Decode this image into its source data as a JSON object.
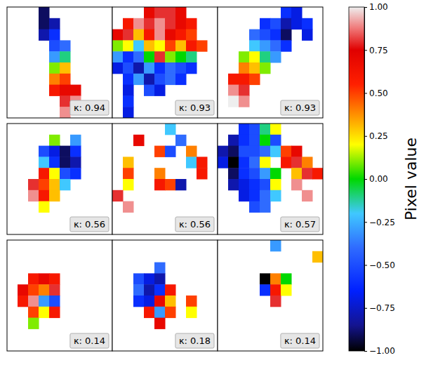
{
  "chart_data": {
    "type": "heatmap",
    "tick_labels": false,
    "panels": [
      {
        "label": "κ: 0.94",
        "cells": [
          [
            null,
            null,
            null,
            -0.9,
            null,
            null,
            null,
            null,
            null,
            null
          ],
          [
            null,
            null,
            null,
            -0.9,
            -0.8,
            null,
            null,
            null,
            null,
            null
          ],
          [
            null,
            null,
            null,
            -0.8,
            -0.6,
            null,
            null,
            null,
            null,
            null
          ],
          [
            null,
            null,
            null,
            null,
            -0.5,
            -0.4,
            null,
            null,
            null,
            null
          ],
          [
            null,
            null,
            null,
            null,
            -0.3,
            -0.1,
            null,
            null,
            null,
            null
          ],
          [
            null,
            null,
            null,
            null,
            0.1,
            0.3,
            null,
            null,
            null,
            null
          ],
          [
            null,
            null,
            null,
            null,
            0.4,
            0.5,
            null,
            null,
            null,
            null
          ],
          [
            null,
            null,
            null,
            null,
            0.6,
            0.7,
            0.7,
            null,
            null,
            null
          ],
          [
            null,
            null,
            null,
            null,
            null,
            0.8,
            0.9,
            null,
            null,
            null
          ],
          [
            null,
            null,
            null,
            null,
            null,
            0.9,
            null,
            null,
            null,
            null
          ]
        ]
      },
      {
        "label": "κ: 0.93",
        "cells": [
          [
            null,
            null,
            null,
            0.7,
            0.8,
            0.8,
            0.7,
            null,
            null,
            null
          ],
          [
            null,
            0.6,
            0.9,
            0.8,
            0.9,
            0.8,
            0.7,
            0.6,
            null,
            null
          ],
          [
            0.7,
            0.8,
            0.3,
            0.6,
            0.9,
            0.7,
            0.6,
            0.5,
            null,
            null
          ],
          [
            0.1,
            0.2,
            -0.2,
            0.3,
            0.2,
            0.5,
            0.3,
            0.6,
            0.5,
            null
          ],
          [
            -0.3,
            -0.6,
            -0.4,
            0.0,
            0.8,
            0.1,
            0.0,
            -0.1,
            null,
            null
          ],
          [
            -0.7,
            -0.5,
            -0.8,
            -0.3,
            -0.6,
            -0.4,
            -0.5,
            -0.6,
            null,
            null
          ],
          [
            null,
            -0.6,
            -0.3,
            -0.8,
            -0.5,
            -0.4,
            -0.6,
            null,
            null,
            null
          ],
          [
            null,
            -0.7,
            null,
            -0.5,
            -0.7,
            null,
            null,
            null,
            null,
            null
          ],
          [
            null,
            -0.6,
            null,
            null,
            null,
            null,
            null,
            null,
            null,
            null
          ],
          [
            null,
            -0.7,
            null,
            null,
            null,
            null,
            null,
            null,
            null,
            null
          ]
        ]
      },
      {
        "label": "κ: 0.93",
        "cells": [
          [
            null,
            null,
            null,
            null,
            null,
            null,
            -0.6,
            -0.7,
            null,
            null
          ],
          [
            null,
            null,
            null,
            null,
            -0.6,
            -0.5,
            -0.8,
            -0.7,
            -0.6,
            null
          ],
          [
            null,
            null,
            null,
            -0.4,
            -0.5,
            -0.6,
            -0.9,
            null,
            -0.7,
            null
          ],
          [
            null,
            null,
            null,
            -0.2,
            -0.3,
            -0.4,
            -0.6,
            null,
            null,
            null
          ],
          [
            null,
            null,
            0.1,
            0.2,
            -0.1,
            -0.3,
            null,
            null,
            null,
            null
          ],
          [
            null,
            null,
            0.4,
            0.3,
            0.1,
            null,
            null,
            null,
            null,
            null
          ],
          [
            null,
            0.6,
            0.6,
            0.5,
            null,
            null,
            null,
            null,
            null,
            null
          ],
          [
            null,
            0.9,
            0.8,
            null,
            null,
            null,
            null,
            null,
            null,
            null
          ],
          [
            null,
            1.0,
            0.9,
            null,
            null,
            null,
            null,
            null,
            null,
            null
          ],
          [
            null,
            null,
            null,
            null,
            null,
            null,
            null,
            null,
            null,
            null
          ]
        ]
      },
      {
        "label": "κ: 0.56",
        "cells": [
          [
            null,
            null,
            null,
            null,
            null,
            null,
            null,
            null,
            null,
            null
          ],
          [
            null,
            null,
            null,
            null,
            0.1,
            null,
            -0.3,
            null,
            null,
            null
          ],
          [
            null,
            null,
            null,
            -0.5,
            -0.7,
            -0.9,
            -0.6,
            null,
            null,
            null
          ],
          [
            null,
            null,
            null,
            -0.2,
            -0.6,
            -0.9,
            -0.8,
            null,
            null,
            null
          ],
          [
            null,
            null,
            null,
            0.6,
            0.2,
            -0.5,
            -0.6,
            null,
            null,
            null
          ],
          [
            null,
            null,
            0.8,
            0.5,
            0.3,
            -0.2,
            null,
            null,
            null,
            null
          ],
          [
            null,
            null,
            0.9,
            0.6,
            0.3,
            null,
            null,
            null,
            null,
            null
          ],
          [
            null,
            null,
            null,
            0.2,
            null,
            null,
            null,
            null,
            null,
            null
          ],
          [
            null,
            null,
            null,
            null,
            null,
            null,
            null,
            null,
            null,
            null
          ],
          [
            null,
            null,
            null,
            null,
            null,
            null,
            null,
            null,
            null,
            null
          ]
        ]
      },
      {
        "label": "κ: 0.56",
        "cells": [
          [
            null,
            null,
            null,
            null,
            null,
            -0.2,
            null,
            null,
            null,
            null
          ],
          [
            null,
            null,
            0.7,
            null,
            null,
            null,
            -0.4,
            null,
            null,
            null
          ],
          [
            null,
            null,
            null,
            null,
            0.5,
            -0.5,
            null,
            0.4,
            null,
            null
          ],
          [
            null,
            0.3,
            null,
            null,
            null,
            null,
            null,
            -0.2,
            0.6,
            null
          ],
          [
            null,
            0.5,
            null,
            null,
            0.4,
            null,
            null,
            null,
            0.6,
            null
          ],
          [
            null,
            0.2,
            null,
            null,
            0.6,
            0.5,
            -0.8,
            null,
            null,
            null
          ],
          [
            0.8,
            null,
            null,
            null,
            null,
            null,
            null,
            null,
            null,
            null
          ],
          [
            null,
            0.9,
            null,
            null,
            null,
            null,
            null,
            null,
            null,
            null
          ],
          [
            null,
            null,
            null,
            null,
            null,
            null,
            null,
            null,
            null,
            null
          ],
          [
            null,
            null,
            null,
            null,
            null,
            null,
            null,
            null,
            null,
            null
          ]
        ]
      },
      {
        "label": "κ: 0.57",
        "cells": [
          [
            null,
            null,
            -0.6,
            -0.5,
            -0.1,
            0.2,
            null,
            null,
            null,
            null
          ],
          [
            null,
            -0.8,
            -0.6,
            -0.5,
            0.0,
            -0.5,
            null,
            null,
            null,
            null
          ],
          [
            -0.8,
            -0.9,
            -0.5,
            -0.5,
            -0.4,
            -0.2,
            0.5,
            0.7,
            null,
            null
          ],
          [
            -0.7,
            -1.0,
            -0.6,
            -0.4,
            0.2,
            null,
            0.6,
            0.8,
            0.4,
            null
          ],
          [
            null,
            -0.9,
            -0.6,
            -0.5,
            -0.3,
            0.0,
            null,
            0.3,
            0.8,
            0.6
          ],
          [
            null,
            -0.8,
            -0.7,
            -0.6,
            -0.5,
            0.2,
            null,
            0.9,
            null,
            null
          ],
          [
            null,
            null,
            -0.7,
            -0.6,
            -0.4,
            -0.2,
            null,
            null,
            0.9,
            null
          ],
          [
            null,
            null,
            null,
            -0.5,
            -0.4,
            null,
            null,
            null,
            null,
            null
          ],
          [
            null,
            null,
            null,
            null,
            null,
            null,
            null,
            null,
            null,
            null
          ],
          [
            null,
            null,
            null,
            null,
            null,
            null,
            null,
            null,
            null,
            null
          ]
        ]
      },
      {
        "label": "κ: 0.14",
        "cells": [
          [
            null,
            null,
            null,
            null,
            null,
            null,
            null,
            null,
            null,
            null
          ],
          [
            null,
            null,
            null,
            null,
            null,
            null,
            null,
            null,
            null,
            null
          ],
          [
            null,
            null,
            null,
            null,
            null,
            null,
            null,
            null,
            null,
            null
          ],
          [
            null,
            null,
            0.6,
            0.7,
            0.6,
            null,
            null,
            null,
            null,
            null
          ],
          [
            null,
            0.7,
            0.5,
            0.4,
            0.8,
            null,
            null,
            null,
            null,
            null
          ],
          [
            null,
            0.6,
            0.9,
            -0.3,
            -0.5,
            null,
            null,
            null,
            null,
            null
          ],
          [
            null,
            null,
            0.5,
            0.2,
            0.6,
            null,
            null,
            null,
            null,
            null
          ],
          [
            null,
            null,
            0.1,
            null,
            null,
            null,
            null,
            null,
            null,
            null
          ],
          [
            null,
            null,
            null,
            null,
            null,
            null,
            null,
            null,
            null,
            null
          ],
          [
            null,
            null,
            null,
            null,
            null,
            null,
            null,
            null,
            null,
            null
          ]
        ]
      },
      {
        "label": "κ: 0.18",
        "cells": [
          [
            null,
            null,
            null,
            null,
            null,
            null,
            null,
            null,
            null,
            null
          ],
          [
            null,
            null,
            null,
            null,
            null,
            null,
            null,
            null,
            null,
            null
          ],
          [
            null,
            null,
            null,
            null,
            -0.4,
            null,
            null,
            null,
            null,
            null
          ],
          [
            null,
            null,
            -0.5,
            -0.7,
            -0.8,
            null,
            null,
            null,
            null,
            null
          ],
          [
            null,
            null,
            -0.4,
            -0.8,
            -0.6,
            0.6,
            null,
            null,
            null,
            null
          ],
          [
            null,
            null,
            -0.6,
            -0.7,
            0.7,
            0.3,
            null,
            0.5,
            null,
            null
          ],
          [
            null,
            null,
            null,
            0.6,
            -0.3,
            0.5,
            null,
            0.2,
            null,
            null
          ],
          [
            null,
            null,
            null,
            null,
            0.7,
            null,
            null,
            null,
            null,
            null
          ],
          [
            null,
            null,
            null,
            null,
            null,
            null,
            null,
            null,
            null,
            null
          ],
          [
            null,
            null,
            null,
            null,
            null,
            null,
            null,
            null,
            null,
            null
          ]
        ]
      },
      {
        "label": "κ: 0.14",
        "cells": [
          [
            null,
            null,
            null,
            null,
            null,
            -0.3,
            null,
            null,
            null,
            null
          ],
          [
            null,
            null,
            null,
            null,
            null,
            null,
            null,
            null,
            null,
            0.3
          ],
          [
            null,
            null,
            null,
            null,
            null,
            null,
            null,
            null,
            null,
            null
          ],
          [
            null,
            null,
            null,
            null,
            -1.0,
            0.4,
            0.0,
            null,
            null,
            null
          ],
          [
            null,
            null,
            null,
            null,
            -0.6,
            0.6,
            0.2,
            null,
            null,
            null
          ],
          [
            null,
            null,
            null,
            null,
            null,
            0.8,
            null,
            null,
            null,
            null
          ],
          [
            null,
            null,
            null,
            null,
            null,
            null,
            null,
            null,
            null,
            null
          ],
          [
            null,
            null,
            null,
            null,
            null,
            null,
            null,
            null,
            null,
            null
          ],
          [
            null,
            null,
            null,
            null,
            null,
            null,
            null,
            null,
            null,
            null
          ],
          [
            null,
            null,
            null,
            null,
            null,
            null,
            null,
            null,
            null,
            null
          ]
        ]
      }
    ],
    "colorbar": {
      "label": "Pixel value",
      "range": [
        -1,
        1
      ],
      "ticks": [
        {
          "value": 1,
          "label": "1.00"
        },
        {
          "value": 0.75,
          "label": "0.75"
        },
        {
          "value": 0.5,
          "label": "0.50"
        },
        {
          "value": 0.25,
          "label": "0.25"
        },
        {
          "value": 0,
          "label": "0.00"
        },
        {
          "value": -0.25,
          "label": "−0.25"
        },
        {
          "value": -0.5,
          "label": "−0.50"
        },
        {
          "value": -0.75,
          "label": "−0.75"
        },
        {
          "value": -1,
          "label": "−1.00"
        }
      ]
    }
  }
}
